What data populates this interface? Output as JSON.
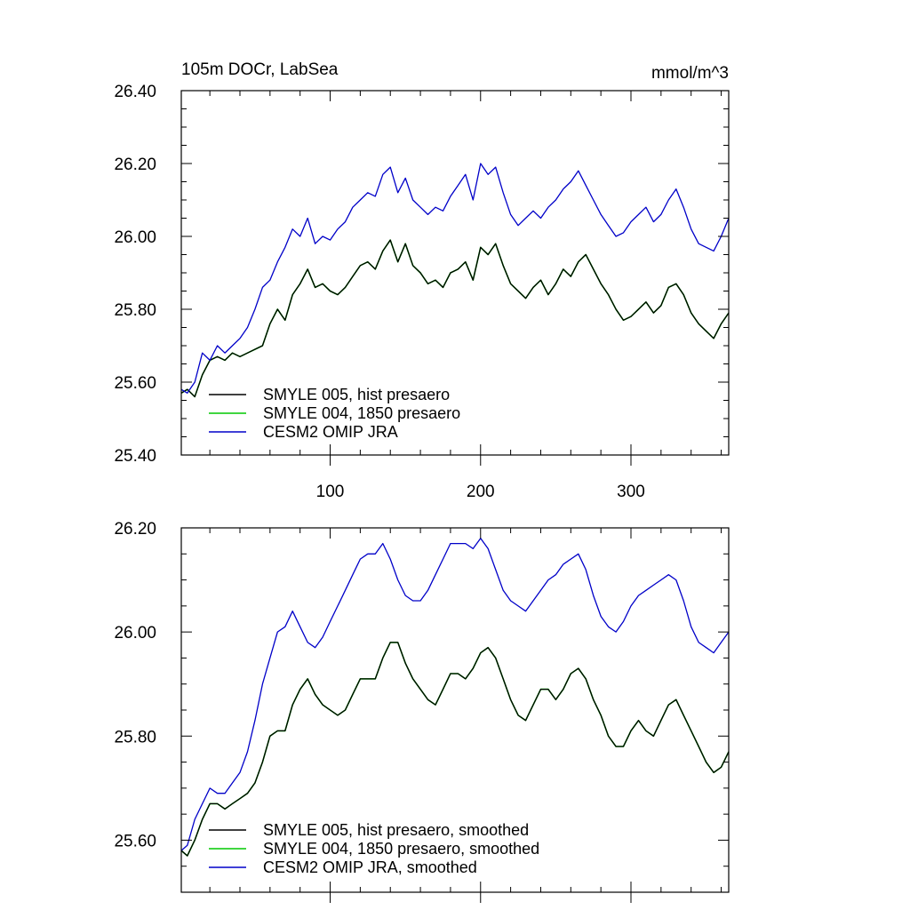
{
  "chart_data": [
    {
      "type": "line",
      "title": "105m DOCr, LabSea",
      "units": "mmol/m^3",
      "xlim": [
        1,
        365
      ],
      "ylim": [
        25.4,
        26.4
      ],
      "x_ticks": [
        100,
        200,
        300
      ],
      "y_ticks": [
        "25.40",
        "25.60",
        "25.80",
        "26.00",
        "26.20",
        "26.40"
      ],
      "legend_position": "bottom-left",
      "series": [
        {
          "name": "SMYLE 005, hist presaero",
          "color": "#000000",
          "x": [
            1,
            5,
            10,
            15,
            20,
            25,
            30,
            35,
            40,
            45,
            50,
            55,
            60,
            65,
            70,
            75,
            80,
            85,
            90,
            95,
            100,
            105,
            110,
            115,
            120,
            125,
            130,
            135,
            140,
            145,
            150,
            155,
            160,
            165,
            170,
            175,
            180,
            185,
            190,
            195,
            200,
            205,
            210,
            215,
            220,
            225,
            230,
            235,
            240,
            245,
            250,
            255,
            260,
            265,
            270,
            275,
            280,
            285,
            290,
            295,
            300,
            305,
            310,
            315,
            320,
            325,
            330,
            335,
            340,
            345,
            350,
            355,
            360,
            365
          ],
          "y": [
            25.57,
            25.58,
            25.56,
            25.62,
            25.66,
            25.67,
            25.66,
            25.68,
            25.67,
            25.68,
            25.69,
            25.7,
            25.76,
            25.8,
            25.77,
            25.84,
            25.87,
            25.91,
            25.86,
            25.87,
            25.85,
            25.84,
            25.86,
            25.89,
            25.92,
            25.93,
            25.91,
            25.96,
            25.99,
            25.93,
            25.98,
            25.92,
            25.9,
            25.87,
            25.88,
            25.86,
            25.9,
            25.91,
            25.93,
            25.88,
            25.97,
            25.95,
            25.98,
            25.92,
            25.87,
            25.85,
            25.83,
            25.86,
            25.88,
            25.84,
            25.87,
            25.91,
            25.89,
            25.93,
            25.95,
            25.91,
            25.87,
            25.84,
            25.8,
            25.77,
            25.78,
            25.8,
            25.82,
            25.79,
            25.81,
            25.86,
            25.87,
            25.84,
            25.79,
            25.76,
            25.74,
            25.72,
            25.76,
            25.79
          ]
        },
        {
          "name": "SMYLE 004, 1850 presaero",
          "color": "#00c800",
          "x": [
            1,
            5,
            10,
            15,
            20,
            25,
            30,
            35,
            40,
            45,
            50,
            55,
            60,
            65,
            70,
            75,
            80,
            85,
            90,
            95,
            100,
            105,
            110,
            115,
            120,
            125,
            130,
            135,
            140,
            145,
            150,
            155,
            160,
            165,
            170,
            175,
            180,
            185,
            190,
            195,
            200,
            205,
            210,
            215,
            220,
            225,
            230,
            235,
            240,
            245,
            250,
            255,
            260,
            265,
            270,
            275,
            280,
            285,
            290,
            295,
            300,
            305,
            310,
            315,
            320,
            325,
            330,
            335,
            340,
            345,
            350,
            355,
            360,
            365
          ],
          "y": [
            25.57,
            25.58,
            25.56,
            25.62,
            25.66,
            25.67,
            25.66,
            25.68,
            25.67,
            25.68,
            25.69,
            25.7,
            25.76,
            25.8,
            25.77,
            25.84,
            25.87,
            25.91,
            25.86,
            25.87,
            25.85,
            25.84,
            25.86,
            25.89,
            25.92,
            25.93,
            25.91,
            25.96,
            25.99,
            25.93,
            25.98,
            25.92,
            25.9,
            25.87,
            25.88,
            25.86,
            25.9,
            25.91,
            25.93,
            25.88,
            25.97,
            25.95,
            25.98,
            25.92,
            25.87,
            25.85,
            25.83,
            25.86,
            25.88,
            25.84,
            25.87,
            25.91,
            25.89,
            25.93,
            25.95,
            25.91,
            25.87,
            25.84,
            25.8,
            25.77,
            25.78,
            25.8,
            25.82,
            25.79,
            25.81,
            25.86,
            25.87,
            25.84,
            25.79,
            25.76,
            25.74,
            25.72,
            25.76,
            25.79
          ]
        },
        {
          "name": "CESM2 OMIP JRA",
          "color": "#0000c8",
          "x": [
            1,
            5,
            10,
            15,
            20,
            25,
            30,
            35,
            40,
            45,
            50,
            55,
            60,
            65,
            70,
            75,
            80,
            85,
            90,
            95,
            100,
            105,
            110,
            115,
            120,
            125,
            130,
            135,
            140,
            145,
            150,
            155,
            160,
            165,
            170,
            175,
            180,
            185,
            190,
            195,
            200,
            205,
            210,
            215,
            220,
            225,
            230,
            235,
            240,
            245,
            250,
            255,
            260,
            265,
            270,
            275,
            280,
            285,
            290,
            295,
            300,
            305,
            310,
            315,
            320,
            325,
            330,
            335,
            340,
            345,
            350,
            355,
            360,
            365
          ],
          "y": [
            25.58,
            25.57,
            25.6,
            25.68,
            25.66,
            25.7,
            25.68,
            25.7,
            25.72,
            25.75,
            25.8,
            25.86,
            25.88,
            25.93,
            25.97,
            26.02,
            26.0,
            26.05,
            25.98,
            26.0,
            25.99,
            26.02,
            26.04,
            26.08,
            26.1,
            26.12,
            26.11,
            26.17,
            26.19,
            26.12,
            26.16,
            26.1,
            26.08,
            26.06,
            26.08,
            26.07,
            26.11,
            26.14,
            26.17,
            26.1,
            26.2,
            26.17,
            26.19,
            26.12,
            26.06,
            26.03,
            26.05,
            26.07,
            26.05,
            26.08,
            26.1,
            26.13,
            26.15,
            26.18,
            26.14,
            26.1,
            26.06,
            26.03,
            26.0,
            26.01,
            26.04,
            26.06,
            26.08,
            26.04,
            26.06,
            26.1,
            26.13,
            26.08,
            26.02,
            25.98,
            25.97,
            25.96,
            26.0,
            26.05
          ]
        }
      ]
    },
    {
      "type": "line",
      "xlim": [
        1,
        365
      ],
      "ylim": [
        25.5,
        26.2
      ],
      "x_ticks": [
        100,
        200,
        300
      ],
      "y_ticks": [
        "25.60",
        "25.80",
        "26.00",
        "26.20"
      ],
      "legend_position": "bottom-left",
      "series": [
        {
          "name": "SMYLE 005, hist presaero, smoothed",
          "color": "#000000",
          "x": [
            1,
            5,
            10,
            15,
            20,
            25,
            30,
            35,
            40,
            45,
            50,
            55,
            60,
            65,
            70,
            75,
            80,
            85,
            90,
            95,
            100,
            105,
            110,
            115,
            120,
            125,
            130,
            135,
            140,
            145,
            150,
            155,
            160,
            165,
            170,
            175,
            180,
            185,
            190,
            195,
            200,
            205,
            210,
            215,
            220,
            225,
            230,
            235,
            240,
            245,
            250,
            255,
            260,
            265,
            270,
            275,
            280,
            285,
            290,
            295,
            300,
            305,
            310,
            315,
            320,
            325,
            330,
            335,
            340,
            345,
            350,
            355,
            360,
            365
          ],
          "y": [
            25.58,
            25.57,
            25.6,
            25.64,
            25.67,
            25.67,
            25.66,
            25.67,
            25.68,
            25.69,
            25.71,
            25.75,
            25.8,
            25.81,
            25.81,
            25.86,
            25.89,
            25.91,
            25.88,
            25.86,
            25.85,
            25.84,
            25.85,
            25.88,
            25.91,
            25.91,
            25.91,
            25.95,
            25.98,
            25.98,
            25.94,
            25.91,
            25.89,
            25.87,
            25.86,
            25.89,
            25.92,
            25.92,
            25.91,
            25.93,
            25.96,
            25.97,
            25.95,
            25.91,
            25.87,
            25.84,
            25.83,
            25.86,
            25.89,
            25.89,
            25.87,
            25.89,
            25.92,
            25.93,
            25.91,
            25.87,
            25.84,
            25.8,
            25.78,
            25.78,
            25.81,
            25.83,
            25.81,
            25.8,
            25.83,
            25.86,
            25.87,
            25.84,
            25.81,
            25.78,
            25.75,
            25.73,
            25.74,
            25.77
          ]
        },
        {
          "name": "SMYLE 004, 1850 presaero, smoothed",
          "color": "#00c800",
          "x": [
            1,
            5,
            10,
            15,
            20,
            25,
            30,
            35,
            40,
            45,
            50,
            55,
            60,
            65,
            70,
            75,
            80,
            85,
            90,
            95,
            100,
            105,
            110,
            115,
            120,
            125,
            130,
            135,
            140,
            145,
            150,
            155,
            160,
            165,
            170,
            175,
            180,
            185,
            190,
            195,
            200,
            205,
            210,
            215,
            220,
            225,
            230,
            235,
            240,
            245,
            250,
            255,
            260,
            265,
            270,
            275,
            280,
            285,
            290,
            295,
            300,
            305,
            310,
            315,
            320,
            325,
            330,
            335,
            340,
            345,
            350,
            355,
            360,
            365
          ],
          "y": [
            25.58,
            25.57,
            25.6,
            25.64,
            25.67,
            25.67,
            25.66,
            25.67,
            25.68,
            25.69,
            25.71,
            25.75,
            25.8,
            25.81,
            25.81,
            25.86,
            25.89,
            25.91,
            25.88,
            25.86,
            25.85,
            25.84,
            25.85,
            25.88,
            25.91,
            25.91,
            25.91,
            25.95,
            25.98,
            25.98,
            25.94,
            25.91,
            25.89,
            25.87,
            25.86,
            25.89,
            25.92,
            25.92,
            25.91,
            25.93,
            25.96,
            25.97,
            25.95,
            25.91,
            25.87,
            25.84,
            25.83,
            25.86,
            25.89,
            25.89,
            25.87,
            25.89,
            25.92,
            25.93,
            25.91,
            25.87,
            25.84,
            25.8,
            25.78,
            25.78,
            25.81,
            25.83,
            25.81,
            25.8,
            25.83,
            25.86,
            25.87,
            25.84,
            25.81,
            25.78,
            25.75,
            25.73,
            25.74,
            25.77
          ]
        },
        {
          "name": "CESM2 OMIP JRA, smoothed",
          "color": "#0000c8",
          "x": [
            1,
            5,
            10,
            15,
            20,
            25,
            30,
            35,
            40,
            45,
            50,
            55,
            60,
            65,
            70,
            75,
            80,
            85,
            90,
            95,
            100,
            105,
            110,
            115,
            120,
            125,
            130,
            135,
            140,
            145,
            150,
            155,
            160,
            165,
            170,
            175,
            180,
            185,
            190,
            195,
            200,
            205,
            210,
            215,
            220,
            225,
            230,
            235,
            240,
            245,
            250,
            255,
            260,
            265,
            270,
            275,
            280,
            285,
            290,
            295,
            300,
            305,
            310,
            315,
            320,
            325,
            330,
            335,
            340,
            345,
            350,
            355,
            360,
            365
          ],
          "y": [
            25.58,
            25.59,
            25.64,
            25.67,
            25.7,
            25.69,
            25.69,
            25.71,
            25.73,
            25.77,
            25.83,
            25.9,
            25.95,
            26.0,
            26.01,
            26.04,
            26.01,
            25.98,
            25.97,
            25.99,
            26.02,
            26.05,
            26.08,
            26.11,
            26.14,
            26.15,
            26.15,
            26.17,
            26.14,
            26.1,
            26.07,
            26.06,
            26.06,
            26.08,
            26.11,
            26.14,
            26.17,
            26.17,
            26.17,
            26.16,
            26.18,
            26.16,
            26.12,
            26.08,
            26.06,
            26.05,
            26.04,
            26.06,
            26.08,
            26.1,
            26.11,
            26.13,
            26.14,
            26.15,
            26.12,
            26.07,
            26.03,
            26.01,
            26.0,
            26.02,
            26.05,
            26.07,
            26.08,
            26.09,
            26.1,
            26.11,
            26.1,
            26.06,
            26.01,
            25.98,
            25.97,
            25.96,
            25.98,
            26.0
          ]
        }
      ]
    }
  ]
}
